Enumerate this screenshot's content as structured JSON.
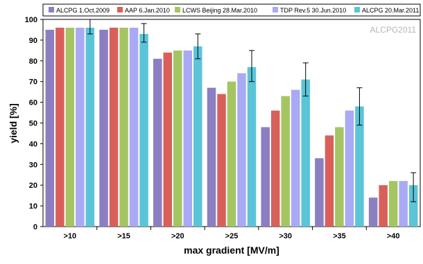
{
  "chart_data": {
    "type": "bar",
    "xlabel": "max gradient [MV/m]",
    "ylabel": "yield [%]",
    "ylim": [
      0,
      100
    ],
    "yticks": [
      0,
      10,
      20,
      30,
      40,
      50,
      60,
      70,
      80,
      90,
      100
    ],
    "grid": false,
    "legend_position": "top",
    "watermark": "ALCPG2011",
    "categories": [
      ">10",
      ">15",
      ">20",
      ">25",
      ">30",
      ">35",
      ">40"
    ],
    "series": [
      {
        "name": "ALCPG 1.Oct.2009",
        "color": "#8B7FC2",
        "values": [
          95,
          95,
          81,
          67,
          48,
          33,
          14
        ]
      },
      {
        "name": "AAP 6.Jan.2010",
        "color": "#D9605A",
        "values": [
          96,
          96,
          84,
          64,
          56,
          44,
          20
        ]
      },
      {
        "name": "LCWS Beijing 28.Mar.2010",
        "color": "#A5C563",
        "values": [
          96,
          96,
          85,
          70,
          63,
          48,
          22
        ]
      },
      {
        "name": "TDP Rev.5 30.Jun.2010",
        "color": "#A9A9F5",
        "values": [
          96,
          96,
          85,
          74,
          66,
          56,
          22
        ]
      },
      {
        "name": "ALCPG 20.Mar.2011",
        "color": "#5BC4D8",
        "values": [
          96,
          93,
          87,
          77,
          71,
          58,
          20
        ]
      }
    ],
    "error_bars": {
      "series": "ALCPG 20.Mar.2011",
      "low": [
        93,
        89,
        81,
        70,
        63,
        49,
        12
      ],
      "high": [
        100,
        98,
        93,
        85,
        79,
        67,
        26
      ]
    }
  }
}
